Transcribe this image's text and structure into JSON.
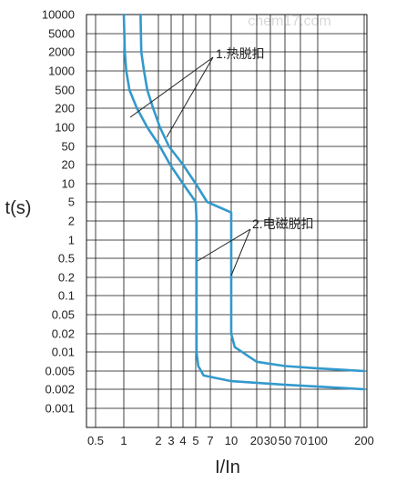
{
  "watermark": "chem17.com",
  "colors": {
    "curve": "#3399cc",
    "grid": "#111111",
    "text": "#222222"
  },
  "chart_data": {
    "type": "line",
    "title": "",
    "xlabel": "I/In",
    "ylabel": "t(s)",
    "x_scale": "custom-nonuniform",
    "y_scale": "custom-nonuniform",
    "x_ticks": [
      0.5,
      1,
      2,
      3,
      4,
      5,
      7,
      10,
      20,
      30,
      50,
      70,
      100,
      200
    ],
    "x_tick_labels": [
      "0.5",
      "1",
      "2",
      "3",
      "4",
      "5",
      "7",
      "10",
      "20",
      "30",
      "50",
      "70",
      "100",
      "200"
    ],
    "y_ticks": [
      10000,
      5000,
      2000,
      1000,
      500,
      200,
      100,
      50,
      20,
      10,
      5,
      2,
      1,
      0.5,
      0.2,
      0.1,
      0.05,
      0.02,
      0.01,
      0.005,
      0.002,
      0.001
    ],
    "y_tick_labels": [
      "10000",
      "5000",
      "2000",
      "1000",
      "500",
      "200",
      "100",
      "50",
      "20",
      "10",
      "5",
      "2",
      "1",
      "0.5",
      "0.2",
      "0.1",
      "0.05",
      "0.02",
      "0.01",
      "0.005",
      "0.002",
      "0.001"
    ],
    "x_range": [
      0.5,
      200
    ],
    "y_range": [
      0.001,
      10000
    ],
    "grid": true,
    "annotations": [
      {
        "text": "1.热脱扣",
        "x": 10,
        "y": 1000
      },
      {
        "text": "2.电磁脱扣",
        "x": 20,
        "y": 2
      }
    ],
    "series": [
      {
        "name": "",
        "points": [
          [
            1,
            10000
          ],
          [
            1.02,
            2000
          ],
          [
            1.05,
            1000
          ],
          [
            1.12,
            500
          ],
          [
            1.3,
            200
          ],
          [
            1.6,
            100
          ],
          [
            2.1,
            50
          ],
          [
            2.9,
            20
          ],
          [
            4,
            10
          ],
          [
            5,
            5
          ],
          [
            5.1,
            2
          ],
          [
            5.1,
            1
          ],
          [
            5.1,
            0.5
          ],
          [
            5.1,
            0.1
          ],
          [
            5.1,
            0.01
          ],
          [
            5.3,
            0.006
          ],
          [
            6,
            0.004
          ],
          [
            10,
            0.003
          ],
          [
            50,
            0.0025
          ],
          [
            200,
            0.002
          ]
        ]
      },
      {
        "name": "",
        "points": [
          [
            1.4,
            10000
          ],
          [
            1.42,
            2000
          ],
          [
            1.5,
            1000
          ],
          [
            1.6,
            500
          ],
          [
            1.8,
            200
          ],
          [
            2.1,
            100
          ],
          [
            2.8,
            50
          ],
          [
            4,
            20
          ],
          [
            5,
            10
          ],
          [
            6.5,
            5
          ],
          [
            10,
            3
          ],
          [
            10,
            1
          ],
          [
            10,
            0.5
          ],
          [
            10,
            0.1
          ],
          [
            10,
            0.02
          ],
          [
            11,
            0.012
          ],
          [
            20,
            0.007
          ],
          [
            50,
            0.006
          ],
          [
            100,
            0.0055
          ],
          [
            200,
            0.005
          ]
        ]
      }
    ]
  }
}
